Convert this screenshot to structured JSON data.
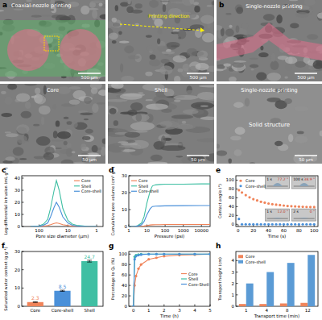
{
  "images": [
    {
      "panel": "a",
      "title": "Coaxial-nozzle printing",
      "scale_bar": "500 μm"
    },
    {
      "title": "Printing direction",
      "scale_bar": "500 μm"
    },
    {
      "panel": "b",
      "title": "Single-nozzle printing",
      "scale_bar": "500 μm"
    },
    {
      "title": "Core",
      "scale_bar": "50 μm"
    },
    {
      "title": "Shell",
      "scale_bar": "50 μm"
    },
    {
      "title": "Single-nozzle printing",
      "subtitle": "Solid structure",
      "scale_bar": "50 μm"
    }
  ],
  "chart_data": [
    {
      "panel": "c",
      "type": "line",
      "x_label": "Pore size diameter (μm)",
      "y_label": "Log differential intrusion (mL g⁻¹)",
      "log": "x",
      "legend": "top-right",
      "xlim": [
        400,
        0.6
      ],
      "xticks": [
        100,
        10,
        1
      ],
      "ylim": [
        0,
        42
      ],
      "yticks": [
        0,
        10,
        20,
        30,
        40
      ],
      "x": [
        200,
        100,
        70,
        50,
        40,
        30,
        25,
        20,
        15,
        10,
        7,
        5,
        3,
        2,
        1
      ],
      "series": [
        {
          "name": "Core",
          "color": "#f0845a",
          "values": [
            0,
            0.1,
            0.3,
            0.8,
            1.5,
            2.5,
            3,
            2.5,
            1.5,
            0.8,
            0.3,
            0.2,
            0.1,
            0,
            0
          ]
        },
        {
          "name": "Shell",
          "color": "#3fbfa3",
          "values": [
            0,
            0.5,
            2,
            6,
            15,
            30,
            38,
            30,
            15,
            5,
            2,
            1,
            0.5,
            0,
            0
          ]
        },
        {
          "name": "Core-shell",
          "color": "#4a90d9",
          "values": [
            0,
            0.3,
            1,
            3,
            8,
            16,
            20,
            16,
            8,
            3,
            1,
            0.5,
            0.2,
            0,
            0
          ]
        }
      ]
    },
    {
      "panel": "d",
      "type": "line",
      "x_label": "Pressure (psi)",
      "y_label": "Cumulative pore volume (cm³ g⁻¹)",
      "log": "x",
      "legend": "top-left",
      "xlim": [
        1,
        30000
      ],
      "xticks": [
        1,
        10,
        100,
        1000,
        10000
      ],
      "ylim": [
        0,
        30
      ],
      "yticks": [
        0,
        10,
        20,
        30
      ],
      "x": [
        1,
        2,
        3,
        5,
        7,
        10,
        15,
        20,
        30,
        50,
        100,
        1000,
        10000,
        30000
      ],
      "series": [
        {
          "name": "Core",
          "color": "#f0845a",
          "values": [
            0,
            0,
            0,
            0.1,
            0.3,
            0.6,
            0.9,
            1,
            1.1,
            1.1,
            1.2,
            1.2,
            1.2,
            1.2
          ]
        },
        {
          "name": "Shell",
          "color": "#3fbfa3",
          "values": [
            0,
            0,
            0.5,
            2,
            6,
            14,
            21,
            24,
            24.6,
            24.8,
            25,
            25,
            25.2,
            25.2
          ]
        },
        {
          "name": "Core-shell",
          "color": "#4a90d9",
          "values": [
            0,
            0,
            0.3,
            1,
            3,
            7,
            10.5,
            11.8,
            12,
            12.1,
            12.2,
            12.3,
            12.4,
            12.4
          ]
        }
      ]
    },
    {
      "panel": "e",
      "type": "scatter",
      "x_label": "Time (s)",
      "y_label": "Contact angle (°)",
      "legend": "top-left",
      "xlim": [
        -3,
        105
      ],
      "xticks": [
        0,
        20,
        40,
        60,
        80,
        100
      ],
      "ylim": [
        -5,
        110
      ],
      "yticks": [
        0,
        20,
        40,
        60,
        80,
        100
      ],
      "x": [
        1,
        5,
        10,
        15,
        20,
        25,
        30,
        35,
        40,
        45,
        50,
        55,
        60,
        65,
        70,
        75,
        80,
        85,
        90,
        95,
        100
      ],
      "series": [
        {
          "name": "Core",
          "color": "#f0845a",
          "values": [
            77.2,
            72,
            66,
            61,
            57,
            54,
            51,
            49,
            47,
            45.5,
            44.5,
            43.5,
            42.5,
            41.5,
            41,
            40.5,
            40,
            39.6,
            39.3,
            39.1,
            38.9
          ]
        },
        {
          "name": "Core-shell",
          "color": "#4a90d9",
          "values": [
            12,
            0,
            0,
            0,
            0,
            0,
            0,
            0,
            0,
            0,
            0,
            0,
            0,
            0,
            0,
            0,
            0,
            0,
            0,
            0,
            0
          ]
        }
      ],
      "insets": [
        {
          "time": "1 s",
          "angle": "77.2 °"
        },
        {
          "time": "100 s",
          "angle": "38.9 °"
        },
        {
          "time": "1 s",
          "angle": "12.0 °"
        },
        {
          "time": "2 s",
          "angle": "0 °"
        }
      ]
    },
    {
      "panel": "f",
      "type": "bar",
      "y_label": "Saturated water content (g g⁻¹)",
      "data_labels": true,
      "categories": [
        "Core",
        "Core-shell",
        "Shell"
      ],
      "values": [
        2.3,
        8.5,
        24.7
      ],
      "errors": [
        0.2,
        0.3,
        0.5
      ],
      "colors": [
        "#f0845a",
        "#4a90d9",
        "#3fbfa3"
      ],
      "ylim": [
        0,
        30
      ],
      "yticks": [
        0,
        10,
        20,
        30
      ]
    },
    {
      "panel": "g",
      "type": "line",
      "marker": "circle",
      "x_label": "Time (h)",
      "y_label": "Percentage to Qₛ (%)",
      "legend": "center-right",
      "xlim": [
        -0.3,
        5
      ],
      "xticks": [
        0,
        1,
        2,
        3,
        4,
        5
      ],
      "ylim": [
        0,
        105
      ],
      "yticks": [
        0,
        20,
        40,
        60,
        80,
        100
      ],
      "x": [
        0,
        0.08,
        0.17,
        0.33,
        0.5,
        1,
        1.5,
        2,
        3,
        4,
        5
      ],
      "series": [
        {
          "name": "Core",
          "color": "#f0845a",
          "values": [
            0,
            40,
            58,
            72,
            80,
            90,
            93,
            96,
            98,
            99,
            100
          ]
        },
        {
          "name": "Shell",
          "color": "#3fbfa3",
          "values": [
            0,
            95,
            98,
            99,
            100,
            100,
            100,
            100,
            100,
            100,
            100
          ]
        },
        {
          "name": "Core-Shell",
          "color": "#4a90d9",
          "values": [
            0,
            90,
            96,
            98,
            99,
            100,
            100,
            100,
            100,
            100,
            100
          ]
        }
      ]
    },
    {
      "panel": "h",
      "type": "bar",
      "x_label": "Transport time (min)",
      "y_label": "Transport height (cm)",
      "legend": "top-left",
      "categories": [
        "1",
        "4",
        "8",
        "12"
      ],
      "ylim": [
        0,
        4.8
      ],
      "yticks": [
        0,
        1,
        2,
        3,
        4
      ],
      "series": [
        {
          "name": "Core",
          "color": "#f0845a",
          "values": [
            0.2,
            0.2,
            0.25,
            0.3
          ]
        },
        {
          "name": "Core-shell",
          "color": "#5b9bd5",
          "values": [
            2.0,
            3.0,
            3.8,
            4.5
          ]
        }
      ]
    }
  ]
}
